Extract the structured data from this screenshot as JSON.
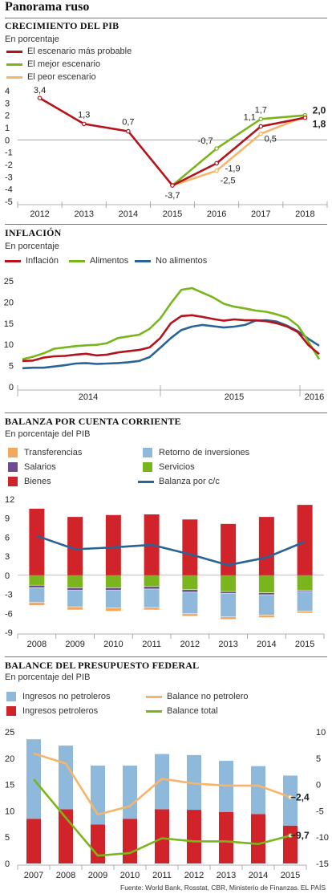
{
  "page_title": "Panorama ruso",
  "colors": {
    "dark_red": "#b5121b",
    "green": "#7ab51d",
    "orange": "#f7b56a",
    "blue": "#2a6496",
    "light_blue": "#8fb9da",
    "purple": "#6b4c8c",
    "orange_bar": "#f5a85c"
  },
  "sections": {
    "pib": {
      "title": "CRECIMIENTO DEL PIB",
      "subtitle": "En porcentaje",
      "legend": [
        "El  escenario más probable",
        "El mejor escenario",
        "El peor escenario"
      ]
    },
    "inflacion": {
      "title": "INFLACIÓN",
      "subtitle": "En porcentaje",
      "legend": [
        "Inflación",
        "Alimentos",
        "No alimentos"
      ]
    },
    "balanza": {
      "title": "BALANZA POR CUENTA CORRIENTE",
      "subtitle": "En porcentaje del PIB",
      "legend": [
        "Transferencias",
        "Retorno de inversiones",
        "Salarios",
        "Servicios",
        "Bienes",
        "Balanza por c/c"
      ]
    },
    "presupuesto": {
      "title": "BALANCE DEL PRESUPUESTO FEDERAL",
      "subtitle": "En porcentaje del PIB",
      "legend": [
        "Ingresos no petroleros",
        "Balance no petrolero",
        "Ingresos petroleros",
        "Balance total"
      ]
    }
  },
  "footer": {
    "source": "Fuente: World Bank, Rosstat, CBR, Ministerio de Finanzas.",
    "credit": "EL PAÍS"
  },
  "chart_data": [
    {
      "type": "line",
      "title": "CRECIMIENTO DEL PIB",
      "x": [
        "2012",
        "2013",
        "2014",
        "2015",
        "2016",
        "2017",
        "2018"
      ],
      "ylim": [
        -5,
        4
      ],
      "yticks": [
        "4",
        "3",
        "2",
        "1",
        "0",
        "-1",
        "-2",
        "-3",
        "-4",
        "-5"
      ],
      "series": [
        {
          "name": "El  escenario más probable",
          "values": [
            3.4,
            1.3,
            0.7,
            -3.7,
            -1.9,
            1.1,
            1.8
          ],
          "labels": [
            "3,4",
            "1,3",
            "0,7",
            "-3,7",
            "-1,9",
            "1,1",
            "1,8"
          ]
        },
        {
          "name": "El mejor escenario",
          "values": [
            null,
            null,
            null,
            -3.7,
            -0.7,
            1.7,
            2.0
          ],
          "labels": [
            "",
            "",
            "",
            "",
            "-0,7",
            "1,7",
            "2,0"
          ]
        },
        {
          "name": "El peor escenario",
          "values": [
            null,
            null,
            null,
            -3.7,
            -2.5,
            0.5,
            1.9
          ],
          "labels": [
            "",
            "",
            "",
            "",
            "-2,5",
            "0,5",
            ""
          ]
        }
      ]
    },
    {
      "type": "line",
      "title": "INFLACIÓN",
      "x_labels": [
        "2014",
        "2015",
        "2016"
      ],
      "ylim": [
        0,
        25
      ],
      "yticks": [
        "25",
        "20",
        "15",
        "10",
        "5",
        "0"
      ],
      "series": [
        {
          "name": "Inflación",
          "values": [
            6.1,
            6.2,
            6.9,
            7.2,
            7.3,
            7.6,
            7.8,
            7.4,
            7.6,
            8.1,
            8.4,
            8.7,
            9.3,
            11.5,
            15.0,
            16.7,
            16.9,
            16.5,
            16.0,
            15.6,
            15.9,
            15.7,
            15.7,
            15.5,
            15.0,
            14.2,
            12.9,
            9.8,
            7.7
          ]
        },
        {
          "name": "Alimentos",
          "values": [
            6.5,
            7.1,
            7.9,
            9.0,
            9.3,
            9.6,
            9.8,
            9.9,
            10.3,
            11.5,
            11.9,
            12.3,
            13.7,
            16.1,
            19.7,
            22.9,
            23.3,
            22.2,
            21.1,
            19.6,
            18.9,
            18.5,
            18.0,
            17.7,
            17.1,
            16.3,
            14.4,
            10.6,
            6.5
          ]
        },
        {
          "name": "No alimentos",
          "values": [
            4.4,
            4.5,
            4.5,
            4.8,
            5.1,
            5.5,
            5.6,
            5.4,
            5.5,
            5.6,
            5.8,
            6.1,
            7.0,
            9.2,
            11.5,
            13.4,
            14.2,
            14.6,
            14.3,
            14.0,
            14.2,
            14.6,
            15.6,
            15.7,
            15.4,
            14.4,
            13.1,
            11.3,
            9.7
          ]
        }
      ]
    },
    {
      "type": "bar",
      "title": "BALANZA POR CUENTA CORRIENTE",
      "categories": [
        "2008",
        "2009",
        "2010",
        "2011",
        "2012",
        "2013",
        "2014",
        "2015"
      ],
      "ylim": [
        -9,
        12
      ],
      "yticks": [
        "12",
        "9",
        "6",
        "3",
        "0",
        "-3",
        "-6",
        "-9"
      ],
      "series": [
        {
          "name": "Bienes",
          "values": [
            10.5,
            9.2,
            9.5,
            9.6,
            8.8,
            8.1,
            9.2,
            11.1
          ]
        },
        {
          "name": "Servicios",
          "values": [
            -1.6,
            -2.0,
            -2.0,
            -1.8,
            -2.3,
            -2.6,
            -2.8,
            -2.4
          ]
        },
        {
          "name": "Salarios",
          "values": [
            -0.4,
            -0.4,
            -0.4,
            -0.4,
            -0.4,
            -0.3,
            -0.3,
            -0.2
          ]
        },
        {
          "name": "Retorno de inversiones",
          "values": [
            -2.3,
            -2.6,
            -2.8,
            -2.9,
            -3.4,
            -3.7,
            -3.2,
            -3.1
          ]
        },
        {
          "name": "Transferencias",
          "values": [
            -0.5,
            -0.5,
            -0.5,
            -0.4,
            -0.4,
            -0.4,
            -0.4,
            -0.3
          ]
        },
        {
          "name": "Balanza por c/c",
          "values": [
            6.2,
            4.1,
            4.4,
            4.8,
            3.3,
            1.6,
            2.8,
            5.3
          ]
        }
      ]
    },
    {
      "type": "bar",
      "title": "BALANCE DEL PRESUPUESTO FEDERAL",
      "categories": [
        "2007",
        "2008",
        "2009",
        "2010",
        "2011",
        "2012",
        "2013",
        "2014",
        "2015"
      ],
      "ylim_left": [
        0,
        25
      ],
      "ylim_right": [
        -15,
        10
      ],
      "yticks_left": [
        "25",
        "20",
        "15",
        "10",
        "5",
        "0"
      ],
      "yticks_right": [
        "10",
        "5",
        "0",
        "-5",
        "-10",
        "-15"
      ],
      "series": [
        {
          "name": "Ingresos petroleros",
          "axis": "left",
          "values": [
            8.5,
            10.3,
            7.4,
            8.5,
            10.3,
            10.2,
            9.8,
            9.4,
            7.2
          ]
        },
        {
          "name": "Ingresos no petroleros",
          "axis": "left",
          "values": [
            15.1,
            12.1,
            11.2,
            10.1,
            10.5,
            10.4,
            9.7,
            9.1,
            9.5
          ]
        },
        {
          "name": "Balance no petrolero",
          "axis": "right",
          "values": [
            5.9,
            4.0,
            -5.7,
            -4.1,
            1.1,
            0.2,
            -0.2,
            -0.2,
            -2.4
          ]
        },
        {
          "name": "Balance total",
          "axis": "right",
          "values": [
            1.0,
            -6.3,
            -13.5,
            -13.0,
            -10.2,
            -10.8,
            -10.8,
            -11.3,
            -9.7
          ]
        }
      ],
      "end_labels": [
        "−2,4",
        "−9,7"
      ]
    }
  ]
}
